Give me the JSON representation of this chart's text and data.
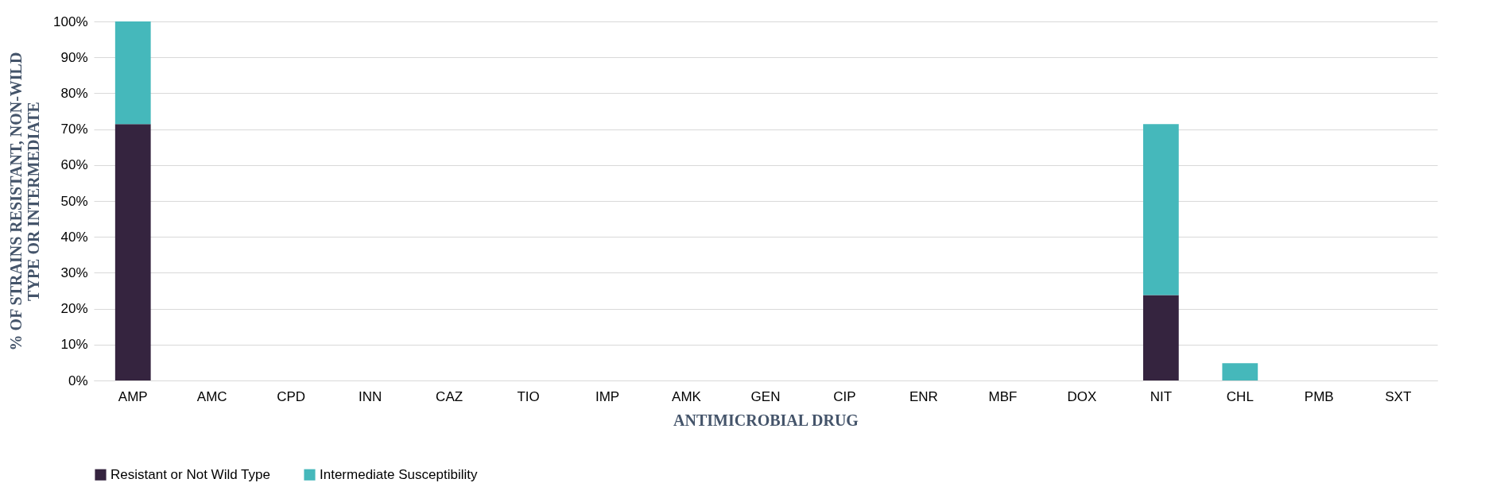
{
  "chart_data": {
    "type": "bar",
    "stacked": true,
    "xlabel": "ANTIMICROBIAL DRUG",
    "ylabel": "% OF STRAINS RESISTANT, NON-WILD\nTYPE OR INTERMEDIATE",
    "categories": [
      "AMP",
      "AMC",
      "CPD",
      "INN",
      "CAZ",
      "TIO",
      "IMP",
      "AMK",
      "GEN",
      "CIP",
      "ENR",
      "MBF",
      "DOX",
      "NIT",
      "CHL",
      "PMB",
      "SXT"
    ],
    "series": [
      {
        "name": "Resistant or Not Wild Type",
        "color": "#35243f",
        "values": [
          71.4,
          0,
          0,
          0,
          0,
          0,
          0,
          0,
          0,
          0,
          0,
          0,
          0,
          23.8,
          0,
          0,
          0
        ]
      },
      {
        "name": "Intermediate Susceptibility",
        "color": "#45b8bb",
        "values": [
          28.6,
          0,
          0,
          0,
          0,
          0,
          0,
          0,
          0,
          0,
          0,
          0,
          0,
          47.6,
          4.8,
          0,
          0
        ]
      }
    ],
    "ylim": [
      0,
      100
    ],
    "yticks": [
      {
        "value": 0,
        "label": "0%"
      },
      {
        "value": 10,
        "label": "10%"
      },
      {
        "value": 20,
        "label": "20%"
      },
      {
        "value": 30,
        "label": "30%"
      },
      {
        "value": 40,
        "label": "40%"
      },
      {
        "value": 50,
        "label": "50%"
      },
      {
        "value": 60,
        "label": "60%"
      },
      {
        "value": 70,
        "label": "70%"
      },
      {
        "value": 80,
        "label": "80%"
      },
      {
        "value": 90,
        "label": "90%"
      },
      {
        "value": 100,
        "label": "100%"
      }
    ],
    "grid": "y",
    "legend": "bottom"
  }
}
